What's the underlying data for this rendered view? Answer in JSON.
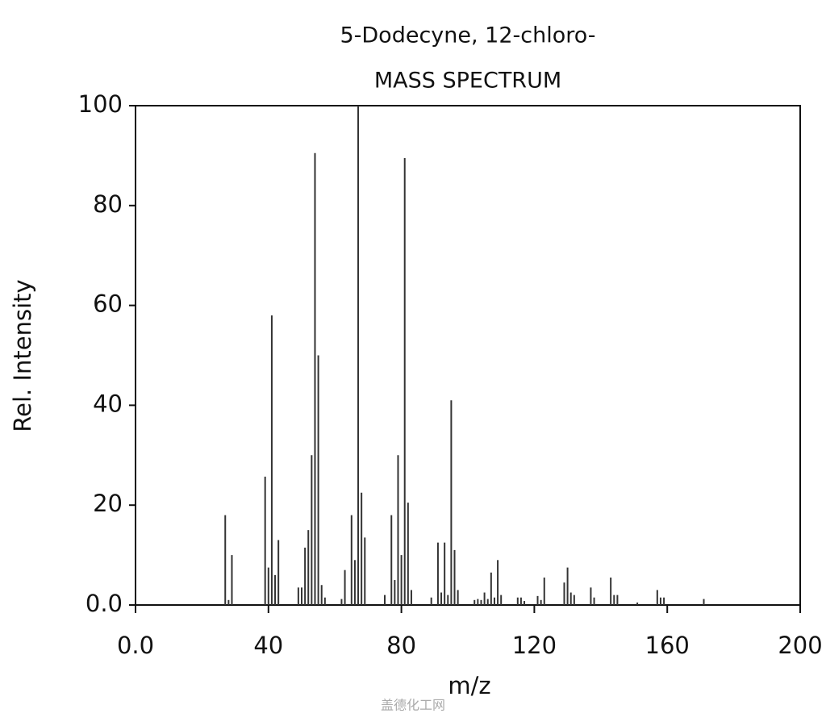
{
  "chart_data": {
    "type": "bar",
    "title": "5-Dodecyne, 12-chloro-",
    "subtitle": "MASS SPECTRUM",
    "x_label": "m/z",
    "y_label": "Rel. Intensity",
    "watermark": "盖德化工网",
    "color": "#333333",
    "x": [
      27,
      28,
      29,
      39,
      40,
      41,
      42,
      43,
      49,
      50,
      51,
      52,
      53,
      54,
      55,
      56,
      57,
      62,
      63,
      65,
      66,
      67,
      68,
      69,
      75,
      77,
      78,
      79,
      80,
      81,
      82,
      83,
      89,
      91,
      92,
      93,
      94,
      95,
      96,
      97,
      102,
      103,
      104,
      105,
      106,
      107,
      108,
      109,
      110,
      115,
      116,
      117,
      121,
      122,
      123,
      129,
      130,
      131,
      132,
      137,
      138,
      143,
      144,
      145,
      151,
      157,
      158,
      159,
      171
    ],
    "values": [
      18,
      1,
      10,
      25.7,
      7.5,
      58,
      6,
      13,
      3.5,
      3.5,
      11.5,
      15,
      30,
      90.5,
      50,
      4,
      1.5,
      1.2,
      7,
      18,
      9,
      100,
      22.5,
      13.5,
      2,
      18,
      5,
      30,
      10,
      89.5,
      20.5,
      3,
      1.5,
      12.5,
      2.5,
      12.5,
      2,
      41,
      11,
      3,
      1,
      1.2,
      1,
      2.5,
      1.2,
      6.5,
      1.5,
      9,
      2,
      1.5,
      1.5,
      0.8,
      1.8,
      1,
      5.5,
      4.5,
      7.5,
      2.5,
      2,
      3.5,
      1.5,
      5.5,
      2,
      2,
      0.5,
      3,
      1.5,
      1.5,
      1.2
    ],
    "xlim": [
      0,
      200
    ],
    "xticks": [
      {
        "value": 0,
        "label": "0.0"
      },
      40,
      80,
      120,
      160,
      200
    ],
    "ylim": [
      0,
      100
    ],
    "yticks": [
      {
        "value": 0,
        "label": "0.0"
      },
      20,
      40,
      60,
      80,
      100
    ]
  }
}
